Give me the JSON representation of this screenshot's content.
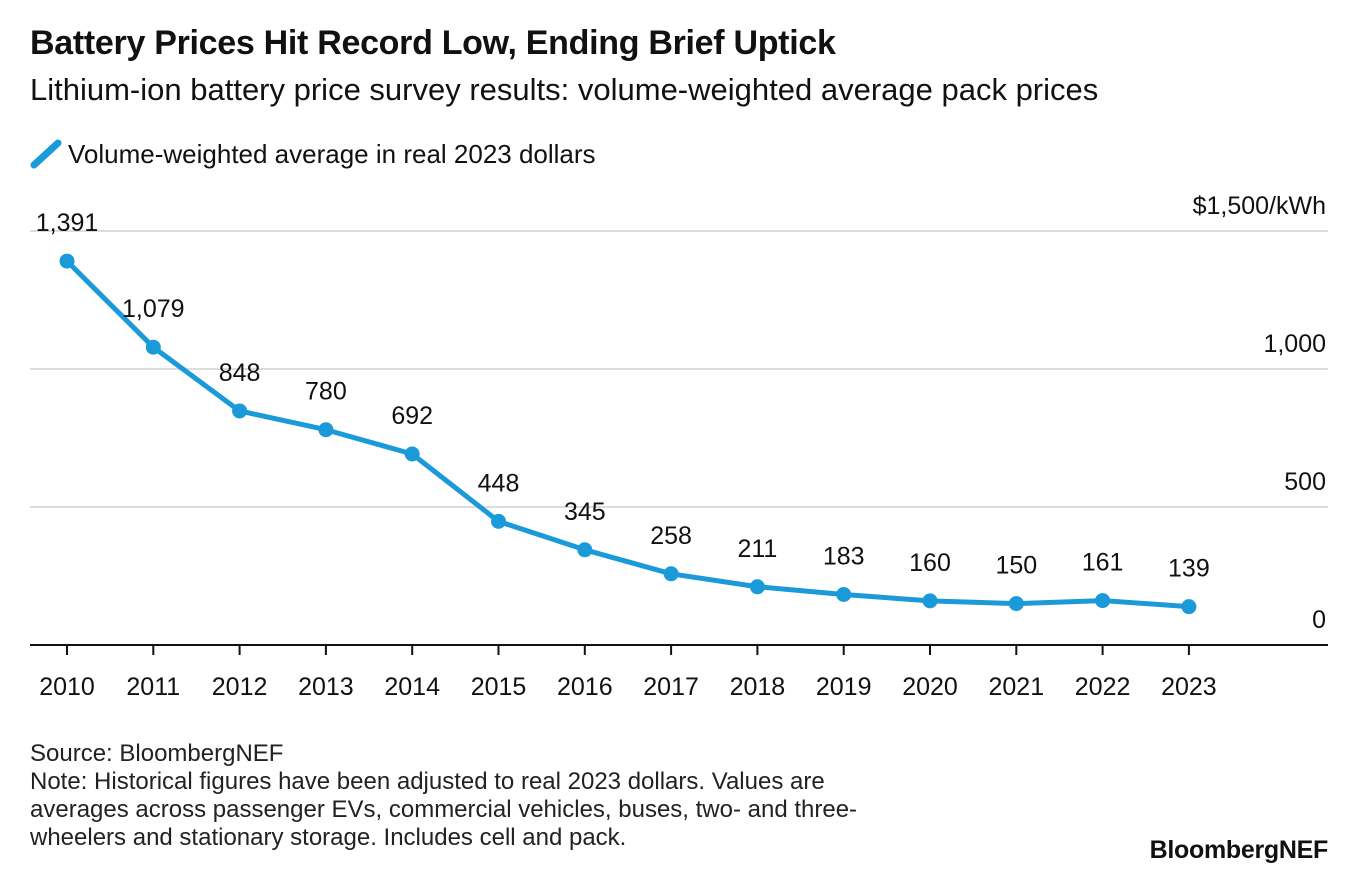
{
  "header": {
    "title": "Battery Prices Hit Record Low, Ending Brief Uptick",
    "subtitle": "Lithium-ion battery price survey results: volume-weighted average pack prices"
  },
  "legend": {
    "label": "Volume-weighted average in real 2023 dollars"
  },
  "colors": {
    "series": "#1a9ad9",
    "grid": "#dddddd",
    "axis": "#111111",
    "text": "#111111"
  },
  "chart_data": {
    "type": "line",
    "title": "Battery Prices Hit Record Low, Ending Brief Uptick",
    "subtitle": "Lithium-ion battery price survey results: volume-weighted average pack prices",
    "x": [
      "2010",
      "2011",
      "2012",
      "2013",
      "2014",
      "2015",
      "2016",
      "2017",
      "2018",
      "2019",
      "2020",
      "2021",
      "2022",
      "2023"
    ],
    "series": [
      {
        "name": "Volume-weighted average in real 2023 dollars",
        "values": [
          1391,
          1079,
          848,
          780,
          692,
          448,
          345,
          258,
          211,
          183,
          160,
          150,
          161,
          139
        ],
        "labels": [
          "1,391",
          "1,079",
          "848",
          "780",
          "692",
          "448",
          "345",
          "258",
          "211",
          "183",
          "160",
          "150",
          "161",
          "139"
        ]
      }
    ],
    "ylim": [
      0,
      1500
    ],
    "yticks": [
      0,
      500,
      1000,
      1500
    ],
    "ytick_labels": [
      "0",
      "500",
      "1,000",
      "$1,500/kWh"
    ],
    "y_axis_side": "right",
    "grid": true,
    "legend_position": "top-left"
  },
  "footer": {
    "source": "Source: BloombergNEF",
    "note_lines": [
      "Note: Historical figures have been adjusted to real 2023 dollars. Values are",
      "averages across passenger EVs, commercial vehicles, buses, two- and three-",
      "wheelers and stationary storage. Includes cell and pack."
    ],
    "brand": "BloombergNEF"
  }
}
